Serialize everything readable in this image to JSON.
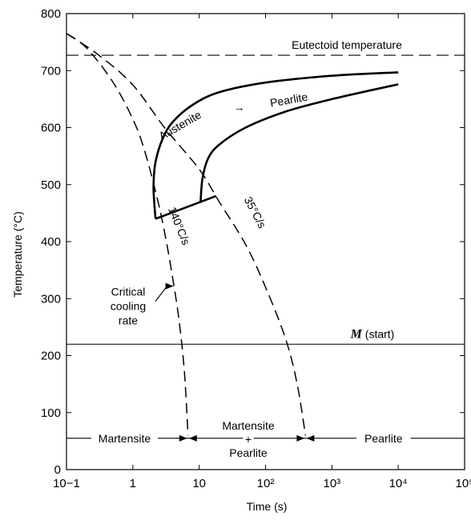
{
  "chart_data": {
    "type": "line",
    "xlabel": "Time (s)",
    "ylabel": "Temperature (°C)",
    "x_scale": "log",
    "xlim": [
      0.1,
      100000
    ],
    "ylim": [
      0,
      800
    ],
    "grid": false,
    "x_ticks": [
      {
        "v": 0.1,
        "label": "10−1"
      },
      {
        "v": 1,
        "label": "1"
      },
      {
        "v": 10,
        "label": "10"
      },
      {
        "v": 100,
        "label": "10²"
      },
      {
        "v": 1000,
        "label": "10³"
      },
      {
        "v": 10000,
        "label": "10⁴"
      },
      {
        "v": 100000,
        "label": "10⁵"
      }
    ],
    "y_ticks": [
      {
        "v": 0,
        "label": "0"
      },
      {
        "v": 100,
        "label": "100"
      },
      {
        "v": 200,
        "label": "200"
      },
      {
        "v": 300,
        "label": "300"
      },
      {
        "v": 400,
        "label": "400"
      },
      {
        "v": 500,
        "label": "500"
      },
      {
        "v": 600,
        "label": "600"
      },
      {
        "v": 700,
        "label": "700"
      },
      {
        "v": 800,
        "label": "800"
      }
    ],
    "reference_lines": [
      {
        "y": 727,
        "label": "Eutectoid temperature",
        "style": "dashed"
      },
      {
        "y": 220,
        "label_italic": "M",
        "label": " (start)",
        "style": "solid"
      },
      {
        "y": 55,
        "style": "solid"
      }
    ],
    "series": [
      {
        "style": "solid",
        "role": "transformation-start",
        "points": [
          [
            2.2,
            440
          ],
          [
            2.1,
            470
          ],
          [
            2.05,
            500
          ],
          [
            2.2,
            540
          ],
          [
            2.8,
            580
          ],
          [
            4,
            610
          ],
          [
            8,
            640
          ],
          [
            20,
            662
          ],
          [
            100,
            679
          ],
          [
            1000,
            691
          ],
          [
            10000,
            697
          ]
        ]
      },
      {
        "style": "solid",
        "role": "transformation-end",
        "points": [
          [
            10.5,
            470
          ],
          [
            11.2,
            510
          ],
          [
            13.5,
            545
          ],
          [
            20,
            570
          ],
          [
            50,
            600
          ],
          [
            200,
            628
          ],
          [
            1000,
            650
          ],
          [
            10000,
            676
          ]
        ]
      },
      {
        "style": "solid",
        "role": "cutoff",
        "points": [
          [
            2.2,
            440
          ],
          [
            18,
            480
          ]
        ]
      },
      {
        "style": "dashed",
        "role": "cooling-140",
        "points": [
          [
            0.1,
            765
          ],
          [
            0.2,
            740
          ],
          [
            0.5,
            680
          ],
          [
            1,
            615
          ],
          [
            1.5,
            560
          ],
          [
            2.4,
            470
          ],
          [
            3.2,
            400
          ],
          [
            4,
            335
          ],
          [
            5,
            260
          ],
          [
            6,
            170
          ],
          [
            6.8,
            60
          ]
        ]
      },
      {
        "style": "dashed",
        "role": "cooling-35",
        "points": [
          [
            0.1,
            765
          ],
          [
            0.3,
            728
          ],
          [
            1,
            675
          ],
          [
            3,
            600
          ],
          [
            10,
            527
          ],
          [
            20,
            470
          ],
          [
            50,
            395
          ],
          [
            100,
            320
          ],
          [
            200,
            230
          ],
          [
            300,
            150
          ],
          [
            400,
            60
          ]
        ]
      }
    ],
    "annotations": [
      {
        "text": "Austenite",
        "x": 5.5,
        "y": 598,
        "rotate": -30
      },
      {
        "text": "→",
        "x": 40,
        "y": 629
      },
      {
        "text": "Pearlite",
        "x": 230,
        "y": 642,
        "rotate": -10
      },
      {
        "text": "140°C/s",
        "x": 4.4,
        "y": 425,
        "rotate": 68
      },
      {
        "text": "35°C/s",
        "x": 62,
        "y": 448,
        "rotate": 62
      }
    ],
    "critical_rate": {
      "lines": [
        "Critical",
        "cooling",
        "rate"
      ],
      "x": 0.85,
      "y": 305,
      "arrow_to": {
        "x": 4.1,
        "y": 322
      }
    },
    "regions": [
      {
        "lines": [
          "Martensite"
        ],
        "x": 0.75,
        "y": 55
      },
      {
        "lines": [
          "Martensite",
          "+",
          "Pearlite"
        ],
        "x": 55,
        "y": 53
      },
      {
        "lines": [
          "Pearlite"
        ],
        "x": 6000,
        "y": 55
      }
    ],
    "region_arrows": [
      {
        "x": 6.8,
        "y": 55,
        "dir": "left"
      },
      {
        "x": 6.8,
        "y": 55,
        "dir": "right"
      },
      {
        "x": 400,
        "y": 55,
        "dir": "left"
      },
      {
        "x": 400,
        "y": 55,
        "dir": "right"
      }
    ]
  }
}
